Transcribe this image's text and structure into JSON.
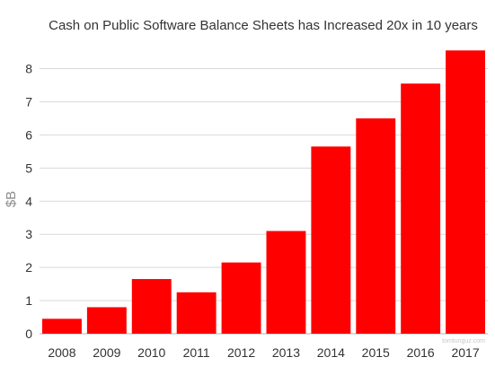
{
  "chart_data": {
    "type": "bar",
    "title": "Cash on Public Software Balance Sheets has Increased 20x in 10 years",
    "xlabel": "",
    "ylabel": "$B",
    "categories": [
      "2008",
      "2009",
      "2010",
      "2011",
      "2012",
      "2013",
      "2014",
      "2015",
      "2016",
      "2017"
    ],
    "values": [
      0.45,
      0.8,
      1.65,
      1.25,
      2.15,
      3.1,
      5.65,
      6.5,
      7.55,
      8.55
    ],
    "ylim": [
      0,
      8.8
    ],
    "yticks": [
      0,
      1,
      2,
      3,
      4,
      5,
      6,
      7,
      8
    ],
    "grid": true,
    "legend": "none",
    "bar_color": "#ff0000"
  },
  "watermark": "tomtunguz.com"
}
